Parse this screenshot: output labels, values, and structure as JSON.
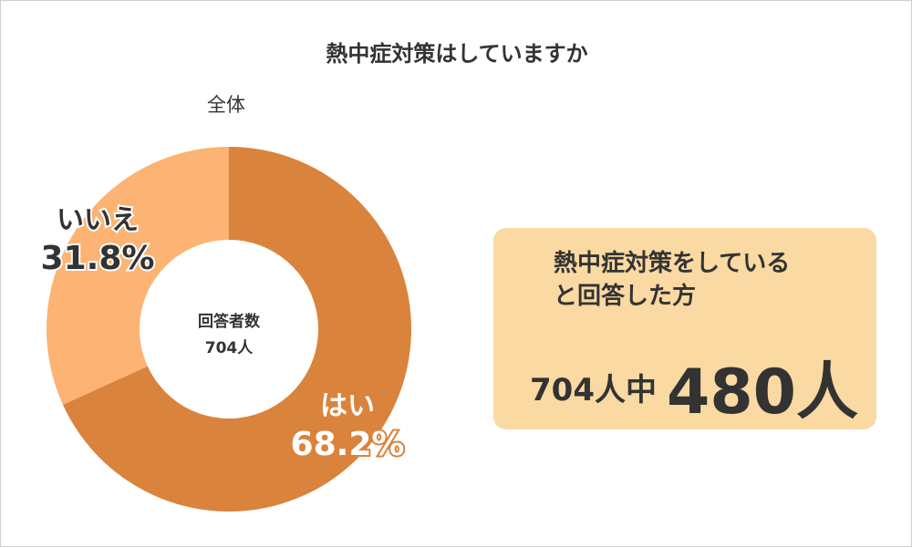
{
  "title": "熱中症対策はしていますか",
  "chart_data": {
    "type": "pie",
    "title": "熱中症対策はしていますか",
    "subtitle": "全体",
    "center_label": [
      "回答者数",
      "704人"
    ],
    "slices": [
      {
        "name": "はい",
        "value": 68.2,
        "percent_label": "68.2%",
        "color": "#da833c"
      },
      {
        "name": "いいえ",
        "value": 31.8,
        "percent_label": "31.8%",
        "color": "#fcb373"
      }
    ]
  },
  "summary": {
    "text_lines": [
      "熱中症対策をしている",
      "と回答した方"
    ],
    "total": "704人中",
    "count": "480人"
  }
}
